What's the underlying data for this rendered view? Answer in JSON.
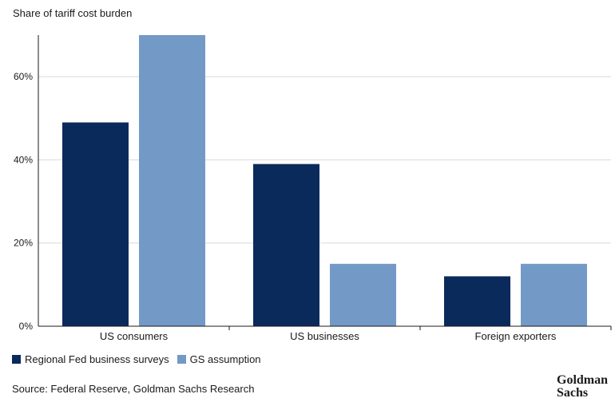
{
  "chart_data": {
    "type": "bar",
    "ylabel": "Share of tariff cost burden",
    "categories": [
      "US consumers",
      "US businesses",
      "Foreign exporters"
    ],
    "series": [
      {
        "name": "Regional Fed business surveys",
        "color": "#0b2a5c",
        "values": [
          49,
          39,
          12
        ]
      },
      {
        "name": "GS assumption",
        "color": "#7399c6",
        "values": [
          70,
          15,
          15
        ]
      }
    ],
    "ylim": [
      0,
      70
    ],
    "yticks": [
      0,
      20,
      40,
      60
    ],
    "ytick_labels": [
      "0%",
      "20%",
      "40%",
      "60%"
    ],
    "grid": true,
    "legend_position": "bottom-left"
  },
  "source": "Source: Federal Reserve, Goldman Sachs Research",
  "logo": {
    "line1": "Goldman",
    "line2": "Sachs"
  }
}
